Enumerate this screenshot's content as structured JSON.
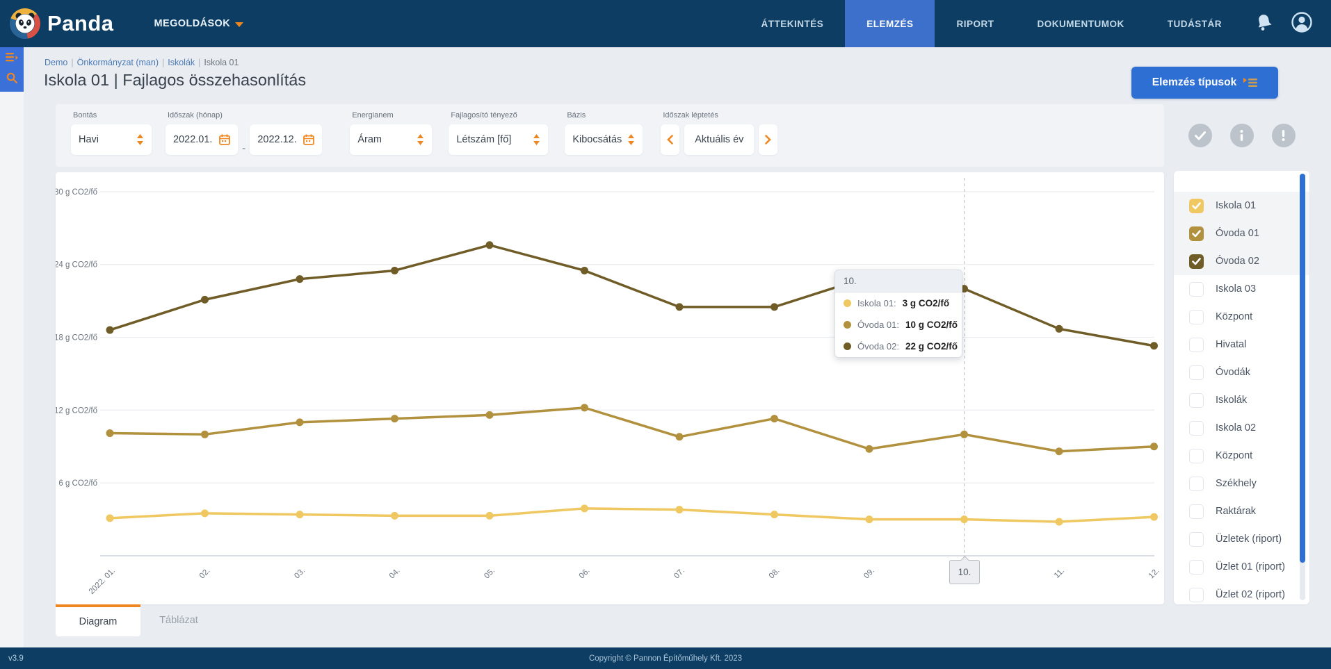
{
  "nav": {
    "brand": "Panda",
    "solutions_label": "MEGOLDÁSOK",
    "items": [
      {
        "label": "ÁTTEKINTÉS",
        "active": false
      },
      {
        "label": "ELEMZÉS",
        "active": true
      },
      {
        "label": "RIPORT",
        "active": false
      },
      {
        "label": "DOKUMENTUMOK",
        "active": false
      },
      {
        "label": "TUDÁSTÁR",
        "active": false
      }
    ]
  },
  "breadcrumb": {
    "links": [
      "Demo",
      "Önkormányzat (man)",
      "Iskolák"
    ],
    "current": "Iskola 01",
    "separator": "|"
  },
  "page": {
    "title": "Iskola 01 | Fajlagos összehasonlítás",
    "analysis_types_button": "Elemzés típusok"
  },
  "filters": {
    "bontas": {
      "label": "Bontás",
      "value": "Havi"
    },
    "idoszak": {
      "label": "Időszak (hónap)",
      "from": "2022.01.",
      "separator": "-",
      "to": "2022.12."
    },
    "energianem": {
      "label": "Energianem",
      "value": "Áram"
    },
    "fajlagosito": {
      "label": "Fajlagosító tényező",
      "value": "Létszám [fő]"
    },
    "bazis": {
      "label": "Bázis",
      "value": "Kibocsátás"
    },
    "leptetes": {
      "label": "Időszak léptetés",
      "value": "Aktuális év"
    }
  },
  "chart_data": {
    "type": "line",
    "title": "Fajlagos összehasonlítás",
    "unit": "g CO2/fő",
    "x_labels": [
      "2022. 01.",
      "02.",
      "03.",
      "04.",
      "05.",
      "06.",
      "07.",
      "08.",
      "09.",
      "10.",
      "11.",
      "12."
    ],
    "y_ticks": [
      30,
      24,
      18,
      12,
      6
    ],
    "ylim": [
      0,
      32
    ],
    "grid": true,
    "legend_position": "right",
    "highlight_index": 9,
    "series": [
      {
        "name": "Iskola 01",
        "color": "#efc862",
        "values": [
          3.1,
          3.5,
          3.4,
          3.3,
          3.3,
          3.9,
          3.8,
          3.4,
          3.0,
          3.0,
          2.8,
          3.2
        ]
      },
      {
        "name": "Óvoda 01",
        "color": "#b2913e",
        "values": [
          10.1,
          10.0,
          11.0,
          11.3,
          11.6,
          12.2,
          9.8,
          11.3,
          8.8,
          10.0,
          8.6,
          9.0
        ]
      },
      {
        "name": "Óvoda 02",
        "color": "#6f5c27",
        "values": [
          18.6,
          21.1,
          22.8,
          23.5,
          25.6,
          23.5,
          20.5,
          20.5,
          23.0,
          22.0,
          18.7,
          17.3
        ]
      }
    ]
  },
  "tooltip": {
    "header": "10.",
    "rows": [
      {
        "name": "Iskola 01:",
        "value": "3 g CO2/fő",
        "color": "#efc862"
      },
      {
        "name": "Óvoda 01:",
        "value": "10 g CO2/fő",
        "color": "#b2913e"
      },
      {
        "name": "Óvoda 02:",
        "value": "22 g CO2/fő",
        "color": "#6f5c27"
      }
    ]
  },
  "side_panel": {
    "items": [
      {
        "label": "Iskola 01",
        "checked": true,
        "color": "#efc862"
      },
      {
        "label": "Óvoda 01",
        "checked": true,
        "color": "#b2913e"
      },
      {
        "label": "Óvoda 02",
        "checked": true,
        "color": "#6f5c27"
      },
      {
        "label": "Iskola 03",
        "checked": false
      },
      {
        "label": "Központ",
        "checked": false
      },
      {
        "label": "Hivatal",
        "checked": false
      },
      {
        "label": "Óvodák",
        "checked": false
      },
      {
        "label": "Iskolák",
        "checked": false
      },
      {
        "label": "Iskola 02",
        "checked": false
      },
      {
        "label": "Központ",
        "checked": false
      },
      {
        "label": "Székhely",
        "checked": false
      },
      {
        "label": "Raktárak",
        "checked": false
      },
      {
        "label": "Üzletek (riport)",
        "checked": false
      },
      {
        "label": "Üzlet 01 (riport)",
        "checked": false
      },
      {
        "label": "Üzlet 02 (riport)",
        "checked": false
      }
    ]
  },
  "tabs": {
    "items": [
      {
        "label": "Diagram",
        "active": true
      },
      {
        "label": "Táblázat",
        "active": false
      }
    ]
  },
  "footer": {
    "version": "v3.9",
    "copyright": "Copyright © Pannon Építőműhely Kft. 2023"
  },
  "colors": {
    "accent_blue": "#2e6fd4",
    "orange": "#ee8722",
    "navbar": "#0d3d63",
    "active_tab": "#3d70ca"
  }
}
